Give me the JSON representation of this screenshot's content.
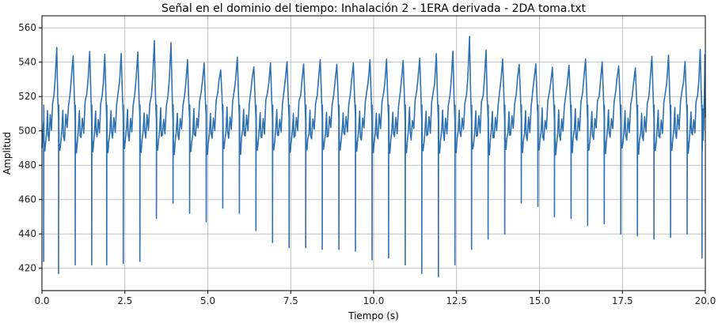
{
  "chart_data": {
    "type": "line",
    "title": "Señal en el dominio del tiempo: Inhalación 2 - 1ERA derivada - 2DA toma.txt",
    "xlabel": "Tiempo (s)",
    "ylabel": "Amplitud",
    "xlim": [
      0,
      20
    ],
    "ylim": [
      407,
      567
    ],
    "grid": true,
    "color": "#2f72b2",
    "xticks": [
      "0.0",
      "2.5",
      "5.0",
      "7.5",
      "10.0",
      "12.5",
      "15.0",
      "17.5",
      "20.0"
    ],
    "xtick_values": [
      0,
      2.5,
      5,
      7.5,
      10,
      12.5,
      15,
      17.5,
      20
    ],
    "yticks": [
      "420",
      "440",
      "460",
      "480",
      "500",
      "520",
      "540",
      "560"
    ],
    "ytick_values": [
      420,
      440,
      460,
      480,
      500,
      520,
      540,
      560
    ],
    "series": [
      {
        "name": "",
        "beat_times": [
          0.05,
          0.5,
          1.0,
          1.5,
          1.95,
          2.45,
          2.95,
          3.45,
          3.95,
          4.45,
          4.95,
          5.45,
          5.95,
          6.45,
          6.95,
          7.45,
          7.95,
          8.45,
          8.95,
          9.45,
          9.95,
          10.45,
          10.95,
          11.45,
          11.95,
          12.45,
          12.95,
          13.45,
          13.95,
          14.45,
          14.95,
          15.45,
          15.95,
          16.45,
          16.95,
          17.45,
          17.95,
          18.45,
          18.95,
          19.45,
          19.9
        ],
        "beat_minima": [
          424,
          417,
          422,
          422,
          422,
          423,
          424,
          449,
          458,
          452,
          447,
          455,
          452,
          442,
          435,
          432,
          432,
          431,
          431,
          430,
          425,
          426,
          422,
          417,
          415,
          422,
          431,
          437,
          440,
          458,
          456,
          450,
          449,
          445,
          446,
          440,
          439,
          437,
          438,
          440,
          426
        ],
        "beat_peaks": [
          548,
          545,
          548,
          545,
          546,
          545,
          551,
          550,
          541,
          540,
          537,
          541,
          539,
          540,
          542,
          540,
          540,
          540,
          541,
          540,
          542,
          543,
          542,
          546,
          548,
          556,
          546,
          541,
          540,
          540,
          539,
          538,
          540,
          541,
          537,
          538,
          542,
          543,
          542,
          546,
          546
        ],
        "trough_level": 488,
        "plateau_level": 500
      }
    ]
  }
}
